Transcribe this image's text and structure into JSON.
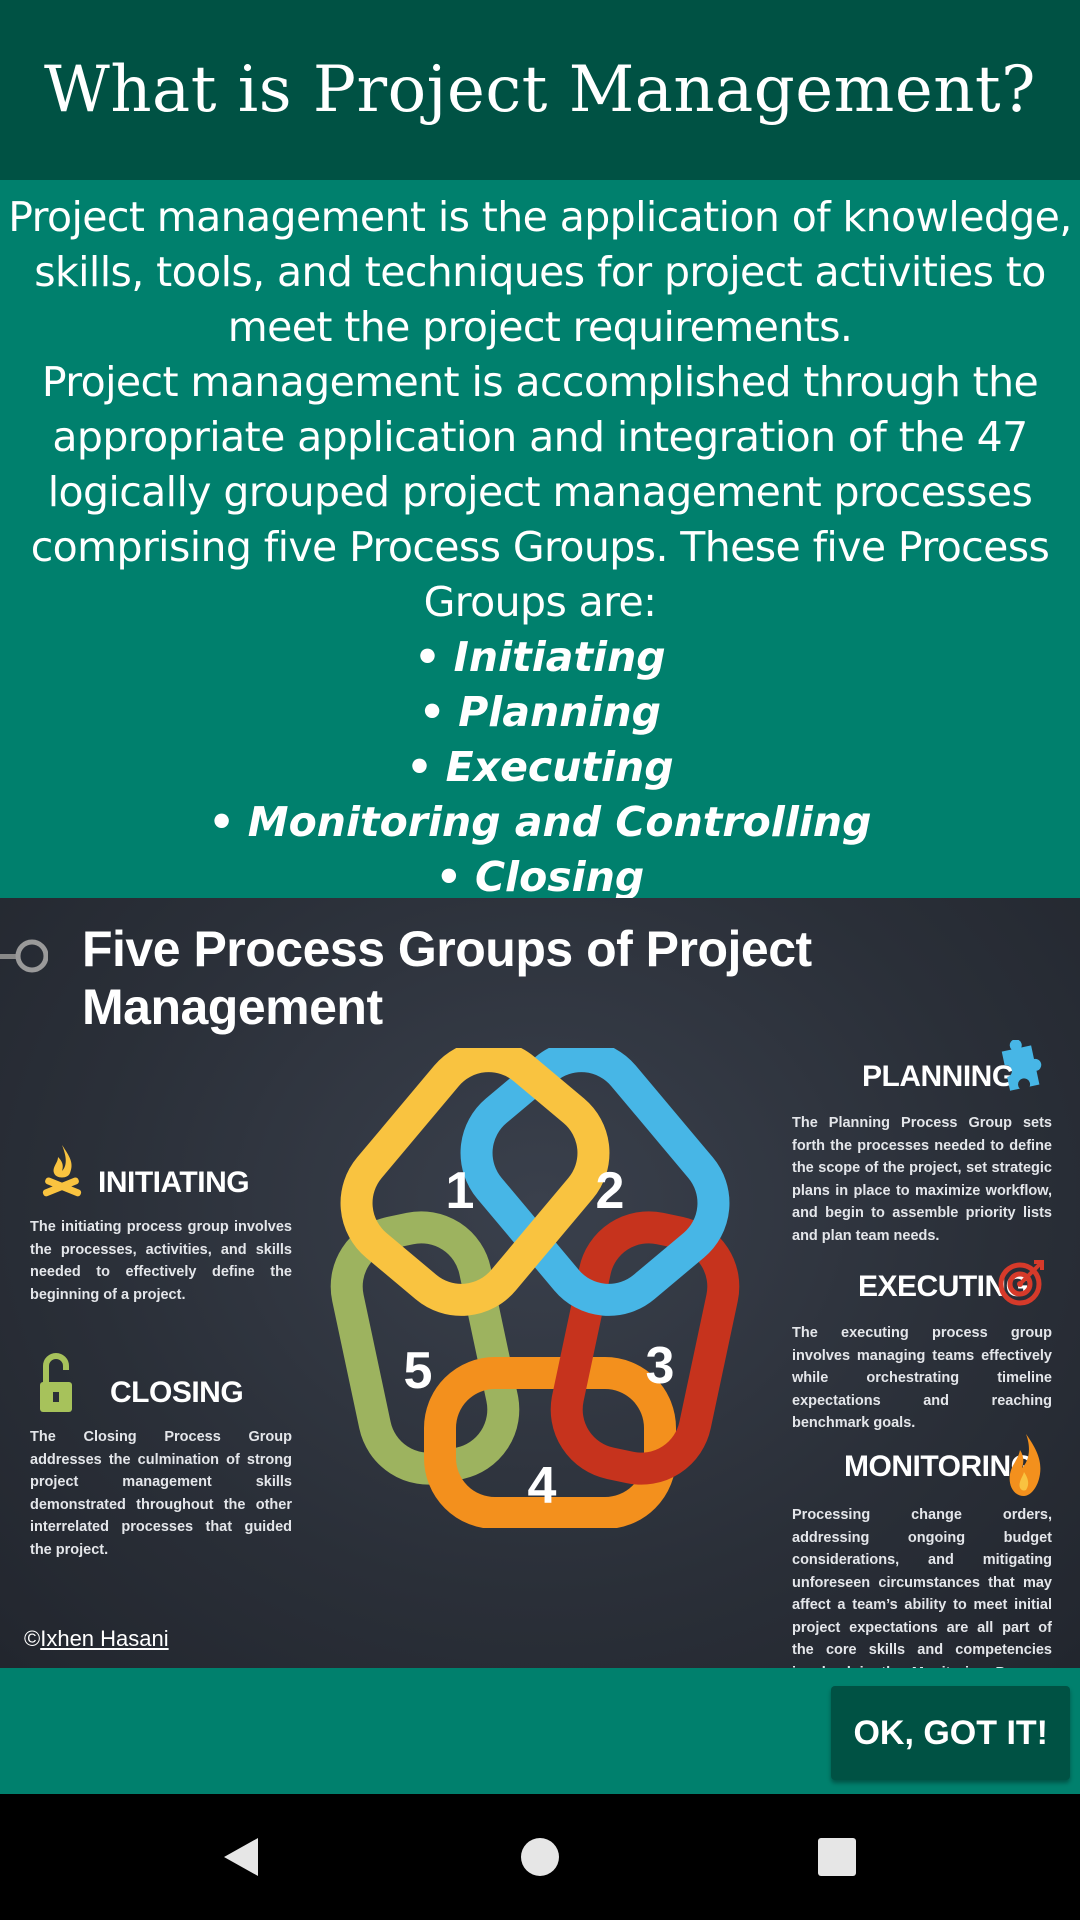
{
  "header": {
    "title": "What is Project Management?"
  },
  "intro": {
    "paragraph_1": "Project management is the application of knowledge, skills, tools, and techniques for project activities to meet the project requirements.",
    "paragraph_2": "Project management is accomplished through the appropriate application and integration of the 47 logically grouped project management processes comprising five Process Groups. These five Process Groups are:",
    "bullet_char": "•",
    "groups": [
      "Initiating",
      "Planning",
      "Executing",
      "Monitoring and Controlling",
      "Closing"
    ]
  },
  "figure": {
    "title": "Five Process Groups of Project Management",
    "ring_numbers": [
      "1",
      "2",
      "3",
      "4",
      "5"
    ],
    "ring_colors": [
      "#f9c340",
      "#47b6e6",
      "#c6331d",
      "#f3901d",
      "#9db35f"
    ],
    "initiating": {
      "label": "INITIATING",
      "description": "The initiating process group involves the processes, activities, and skills needed to effectively define the beginning of a project.",
      "icon": "campfire-icon"
    },
    "closing": {
      "label": "CLOSING",
      "description": "The Closing Process Group addresses the culmination of strong project management skills demonstrated throughout the other interrelated processes that guided the project.",
      "icon": "open-lock-icon"
    },
    "planning": {
      "label": "PLANNING",
      "description": "The Planning Process Group sets forth the processes needed to define the scope of the project, set strategic plans in place to maximize workflow, and begin to assemble priority lists and plan team needs.",
      "icon": "puzzle-piece-icon"
    },
    "executing": {
      "label": "EXECUTING",
      "description": "The executing process group involves managing teams effectively while orchestrating timeline expectations and reaching benchmark goals.",
      "icon": "target-icon"
    },
    "monitoring": {
      "label": "MONITORING",
      "description": "Processing change orders, addressing ongoing budget considerations, and mitigating unforeseen circumstances that may affect a team’s ability to meet initial project expectations are all part of the core skills and competencies involved in the Monitoring Process Group.",
      "icon": "flame-icon"
    },
    "copyright_symbol": "©",
    "copyright_name": "Ixhen Hasani"
  },
  "footer": {
    "ok_label": "OK, GOT IT!"
  },
  "navbar": {
    "back": "back-icon",
    "home": "home-icon",
    "recents": "recents-icon"
  }
}
